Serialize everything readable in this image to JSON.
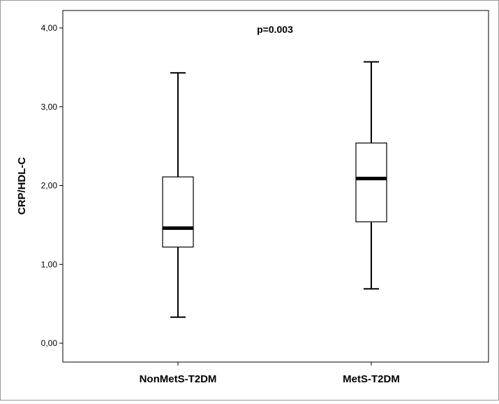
{
  "chart_data": {
    "type": "boxplot",
    "title": "",
    "xlabel": "",
    "ylabel": "CRP/HDL-C",
    "ylim": [
      0,
      4
    ],
    "yticks": [
      0,
      1,
      2,
      3,
      4
    ],
    "ytick_labels": [
      "0,00",
      "1,00",
      "2,00",
      "3,00",
      "4,00"
    ],
    "grid": false,
    "legend": "none",
    "categories": [
      "NonMetS-T2DM",
      "MetS-T2DM"
    ],
    "boxes": [
      {
        "category": "NonMetS-T2DM",
        "whisker_low": 0.33,
        "q1": 1.22,
        "median": 1.46,
        "q3": 2.11,
        "whisker_high": 3.43
      },
      {
        "category": "MetS-T2DM",
        "whisker_low": 0.69,
        "q1": 1.54,
        "median": 2.09,
        "q3": 2.54,
        "whisker_high": 3.57
      }
    ],
    "annotation": "p=0.003"
  }
}
